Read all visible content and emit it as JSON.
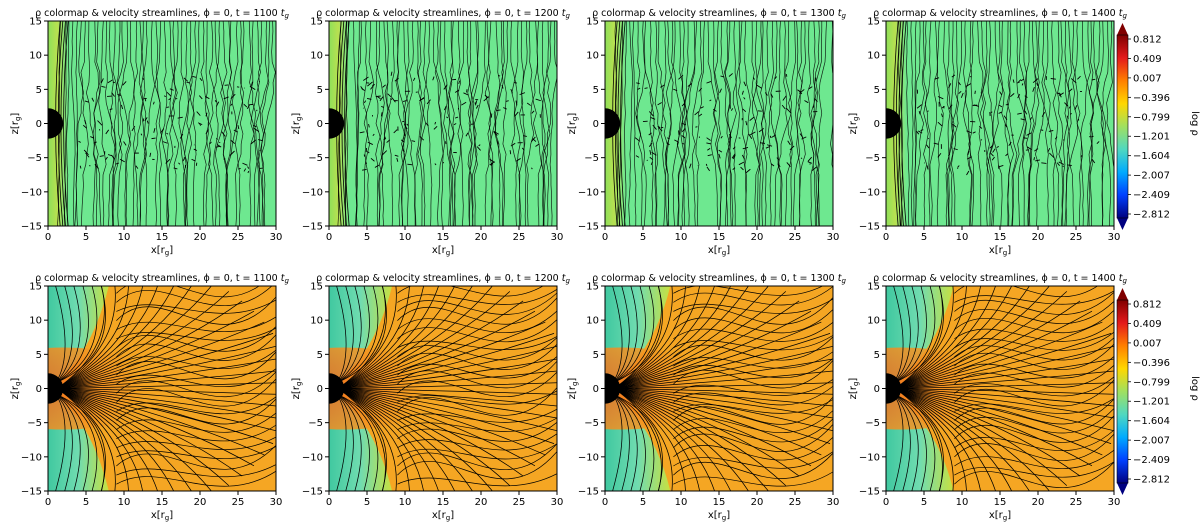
{
  "figure": {
    "panel_title_base": "ρ colormap & velocity streamlines, ϕ = 0, t = ",
    "time_unit": "t",
    "time_unit_sub": "g",
    "colorbar_label": "log ρ"
  },
  "chart_data": {
    "type": "heatmap",
    "xlabel": "x[r_g]",
    "ylabel": "z[r_g]",
    "xlim": [
      0,
      30
    ],
    "ylim": [
      -15,
      15
    ],
    "x_ticks": [
      "0",
      "5",
      "10",
      "15",
      "20",
      "25",
      "30"
    ],
    "y_ticks": [
      "15",
      "10",
      "5",
      "0",
      "−5",
      "−10",
      "−15"
    ],
    "times": [
      1100,
      1200,
      1300,
      1400
    ],
    "colorbar": {
      "label": "log ρ",
      "range": [
        -2.812,
        0.812
      ],
      "ticks": [
        "0.812",
        "0.409",
        "0.007",
        "−0.396",
        "−0.799",
        "−1.201",
        "−1.604",
        "−2.007",
        "−2.409",
        "−2.812"
      ],
      "colors": [
        "#800000",
        "#e41a1c",
        "#ff7f00",
        "#ffd700",
        "#a0e060",
        "#50d8c0",
        "#00aaff",
        "#0040ff",
        "#000080"
      ]
    },
    "rows": [
      {
        "field_color": "#6ee890",
        "inner_color": "#8ee05a"
      },
      {
        "field_color": "#f07a22",
        "inner_color": "#e8431c",
        "wing_color": "#70dcb0"
      }
    ]
  }
}
